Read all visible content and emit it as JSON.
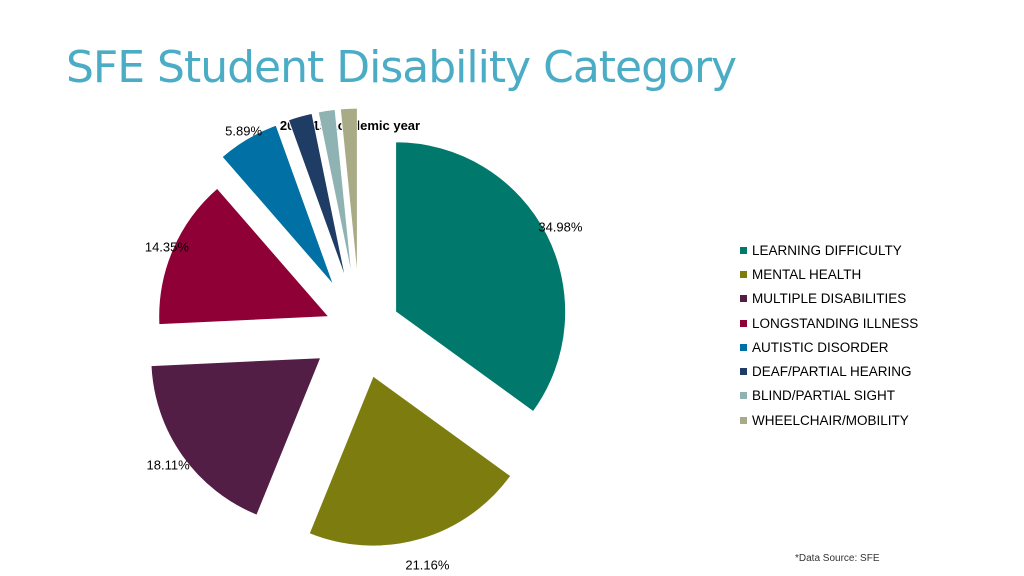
{
  "slide": {
    "title": "SFE Student Disability Category",
    "source_note": "*Data Source: SFE"
  },
  "chart_data": {
    "type": "pie",
    "subtitle": "2018/19 academic year",
    "slices": [
      {
        "name": "LEARNING DIFFICULTY",
        "value": 34.98,
        "label": "34.98%",
        "color": "#00786c"
      },
      {
        "name": "MENTAL HEALTH",
        "value": 21.16,
        "label": "21.16%",
        "color": "#7d7d0f"
      },
      {
        "name": "MULTIPLE DISABILITIES",
        "value": 18.11,
        "label": "18.11%",
        "color": "#521e45"
      },
      {
        "name": "LONGSTANDING ILLNESS",
        "value": 14.35,
        "label": "14.35%",
        "color": "#8f0036"
      },
      {
        "name": "AUTISTIC DISORDER",
        "value": 5.89,
        "label": "5.89%",
        "color": "#0070a5"
      },
      {
        "name": "DEAF/PARTIAL HEARING",
        "value": 2.3,
        "label": "",
        "color": "#1f3c64"
      },
      {
        "name": "BLIND/PARTIAL SIGHT",
        "value": 1.6,
        "label": "",
        "color": "#8fb3b2"
      },
      {
        "name": "WHEELCHAIR/MOBILITY",
        "value": 1.6,
        "label": "",
        "color": "#a9aa86"
      }
    ],
    "legend_position": "right"
  }
}
